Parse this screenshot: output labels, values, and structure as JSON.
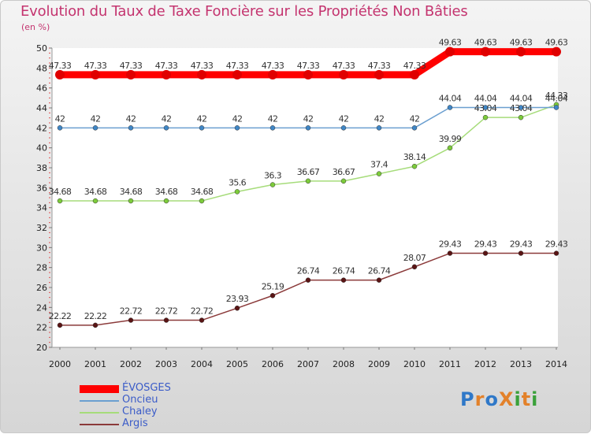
{
  "title": "Evolution du Taux de Taxe Foncière sur les Propriétés Non Bâties",
  "unit": "(en %)",
  "logo": {
    "text": "ProXiti",
    "colors": [
      "#2f78c8",
      "#e3812a",
      "#2f78c8",
      "#e3812a",
      "#3aa13a",
      "#e3812a",
      "#3aa13a"
    ]
  },
  "chart_data": {
    "type": "line",
    "x": [
      "2000",
      "2001",
      "2002",
      "2003",
      "2004",
      "2005",
      "2006",
      "2007",
      "2008",
      "2009",
      "2010",
      "2011",
      "2012",
      "2013",
      "2014"
    ],
    "ylim": [
      20,
      50
    ],
    "yticks": [
      "20",
      "22",
      "24",
      "26",
      "28",
      "30",
      "32",
      "34",
      "36",
      "38",
      "40",
      "42",
      "44",
      "46",
      "48",
      "50"
    ],
    "grid": false,
    "legend_position": "bottom-left",
    "series": [
      {
        "name": "ÉVOSGES",
        "color": "#ff0000",
        "marker": "#e00000",
        "bold": true,
        "values": [
          47.33,
          47.33,
          47.33,
          47.33,
          47.33,
          47.33,
          47.33,
          47.33,
          47.33,
          47.33,
          47.33,
          49.63,
          49.63,
          49.63,
          49.63
        ],
        "labels": [
          "47.33",
          "47.33",
          "47.33",
          "47.33",
          "47.33",
          "47.33",
          "47.33",
          "47.33",
          "47.33",
          "47.33",
          "47.33",
          "49.63",
          "49.63",
          "49.63",
          "49.63"
        ]
      },
      {
        "name": "Oncieu",
        "color": "#6b9fd0",
        "marker": "#3f86c6",
        "bold": false,
        "values": [
          42,
          42,
          42,
          42,
          42,
          42,
          42,
          42,
          42,
          42,
          42,
          44.04,
          44.04,
          44.04,
          44.04
        ],
        "labels": [
          "42",
          "42",
          "42",
          "42",
          "42",
          "42",
          "42",
          "42",
          "42",
          "42",
          "42",
          "44.04",
          "44.04",
          "44.04",
          "44.04"
        ]
      },
      {
        "name": "Chaley",
        "color": "#a6dc7a",
        "marker": "#7ccb3a",
        "bold": false,
        "values": [
          34.68,
          34.68,
          34.68,
          34.68,
          34.68,
          35.6,
          36.3,
          36.67,
          36.67,
          37.4,
          38.14,
          39.99,
          43.04,
          43.04,
          44.33
        ],
        "labels": [
          "34.68",
          "34.68",
          "34.68",
          "34.68",
          "34.68",
          "35.6",
          "36.3",
          "36.67",
          "36.67",
          "37.4",
          "38.14",
          "39.99",
          "43.04",
          "43.04",
          "44.33"
        ]
      },
      {
        "name": "Argis",
        "color": "#8b3a3a",
        "marker": "#5a1414",
        "bold": false,
        "values": [
          22.22,
          22.22,
          22.72,
          22.72,
          22.72,
          23.93,
          25.19,
          26.74,
          26.74,
          26.74,
          28.07,
          29.43,
          29.43,
          29.43,
          29.43
        ],
        "labels": [
          "22.22",
          "22.22",
          "22.72",
          "22.72",
          "22.72",
          "23.93",
          "25.19",
          "26.74",
          "26.74",
          "26.74",
          "28.07",
          "29.43",
          "29.43",
          "29.43",
          "29.43"
        ]
      }
    ]
  }
}
